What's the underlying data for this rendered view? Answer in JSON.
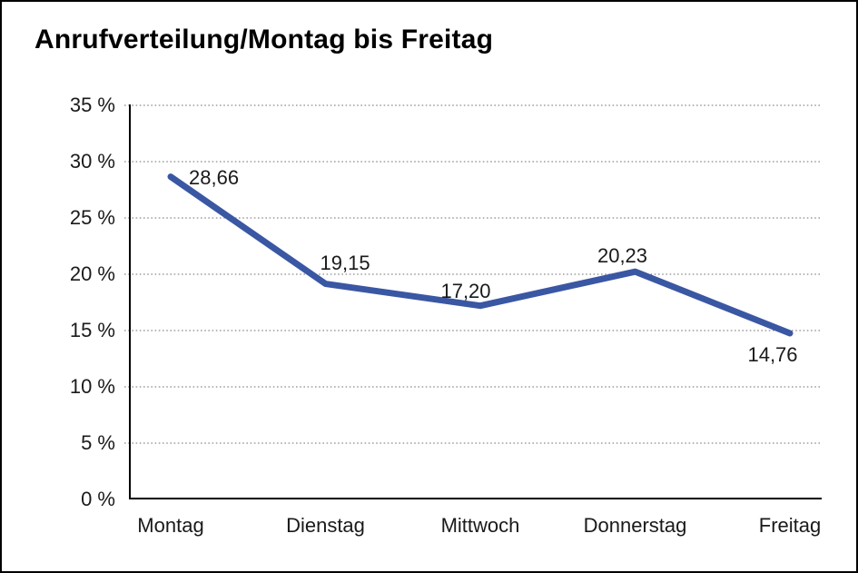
{
  "chart_data": {
    "type": "line",
    "title": "Anrufverteilung/Montag bis Freitag",
    "categories": [
      "Montag",
      "Dienstag",
      "Mittwoch",
      "Donnerstag",
      "Freitag"
    ],
    "series": [
      {
        "name": "",
        "values": [
          28.66,
          19.15,
          17.2,
          20.23,
          14.76
        ]
      }
    ],
    "point_labels": [
      "28,66",
      "19,15",
      "17,20",
      "20,23",
      "14,76"
    ],
    "xlabel": "",
    "ylabel": "",
    "ylim": [
      0,
      35
    ],
    "yticks": [
      0,
      5,
      10,
      15,
      20,
      25,
      30,
      35
    ],
    "ytick_labels": [
      "0 %",
      "5 %",
      "10 %",
      "15 %",
      "20 %",
      "25 %",
      "30 %",
      "35 %"
    ],
    "grid": "horizontal-dotted",
    "legend": "none",
    "colors": {
      "line": "#3a57a3",
      "grid": "#8c8c8c",
      "axis": "#000000",
      "text": "#1a1a1a",
      "background": "#ffffff",
      "border": "#000000"
    }
  }
}
